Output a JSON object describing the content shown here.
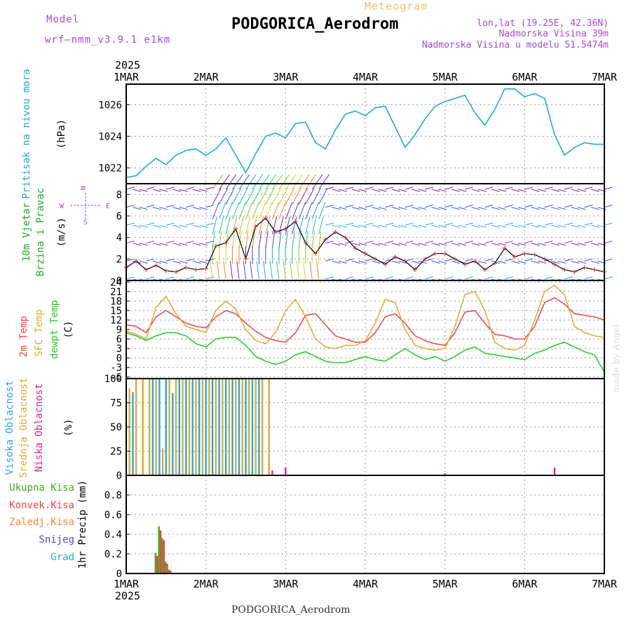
{
  "header": {
    "model_label": "Model",
    "model_version": "wrf–nmm_v3.9.1  e1km",
    "meteogram_label": "Meteogram",
    "station_title": "PODGORICA_Aerodrom",
    "lonlat": "lon,lat (19.25E, 42.36N)",
    "elevation": "Nadmorska Visina 39m",
    "model_elevation": "Nadmorska Visina u modelu 51.5474m"
  },
  "footer": {
    "station": "PODGORICA_Aerodrom",
    "credit": "made by Angel"
  },
  "x_axis": {
    "year": "2025",
    "labels": [
      "1MAR",
      "2MAR",
      "3MAR",
      "4MAR",
      "5MAR",
      "6MAR",
      "7MAR"
    ]
  },
  "colors": {
    "pressure": "#22aadd",
    "temp2m": "#ee4444",
    "sfc_temp": "#ddaa33",
    "dewpt": "#22cc22",
    "high_cloud": "#22aadd",
    "mid_cloud": "#ddaa33",
    "low_cloud": "#dd2288",
    "precip_total": "#44aa22",
    "precip_conv": "#ee4444",
    "grid": "#999999"
  },
  "panels": {
    "pressure": {
      "ylabel_main": "Pritisak na nivou mora",
      "unit": "(hPa)"
    },
    "wind": {
      "ylabel_main": "10m Vjetar",
      "ylabel_sub": "Brzina i Pravac",
      "unit": "(m/s)",
      "compass_n": "N",
      "compass_e": "E",
      "compass_w": "W",
      "compass_s": "S"
    },
    "temp": {
      "label_2m": "2m Temp",
      "label_sfc": "SFC Temp",
      "label_dew": "dewpt Temp",
      "unit": "(C)"
    },
    "cloud": {
      "label_high": "Visoka Oblacnost",
      "label_mid": "Srednja Oblacnost",
      "label_low": "Niska Oblacnost",
      "unit": "(%)"
    },
    "precip": {
      "label_total": "Ukupna Kisa",
      "label_conv": "Konvek.Kisa",
      "label_frz": "Zaledj.Kisa",
      "label_snow": "Snijeg",
      "label_grad": "Grad",
      "ylabel": "1hr Precip (mm)"
    }
  },
  "chart_data": [
    {
      "type": "line",
      "panel": "pressure",
      "ylabel": "(hPa)",
      "x_unit": "hours since 1MAR 00",
      "ylim": [
        1021,
        1027.3
      ],
      "yticks": [
        1022,
        1024,
        1026
      ],
      "series": [
        {
          "name": "Pritisak na nivou mora",
          "x": [
            0,
            3,
            6,
            9,
            12,
            15,
            18,
            21,
            24,
            27,
            30,
            33,
            36,
            39,
            42,
            45,
            48,
            51,
            54,
            57,
            60,
            63,
            66,
            69,
            72,
            75,
            78,
            81,
            84,
            87,
            90,
            93,
            96,
            99,
            102,
            105,
            108,
            111,
            114,
            117,
            120,
            123,
            126,
            129,
            132,
            135,
            138,
            141,
            144
          ],
          "values": [
            1021.4,
            1021.5,
            1022.1,
            1022.6,
            1022.2,
            1022.8,
            1023.1,
            1023.2,
            1022.8,
            1023.2,
            1023.9,
            1022.8,
            1021.7,
            1022.9,
            1024.0,
            1024.2,
            1023.9,
            1024.8,
            1024.9,
            1023.6,
            1023.2,
            1024.4,
            1025.4,
            1025.6,
            1025.3,
            1025.8,
            1025.9,
            1024.6,
            1023.3,
            1024.1,
            1025.1,
            1025.9,
            1026.2,
            1026.4,
            1026.6,
            1025.5,
            1024.7,
            1025.7,
            1027.0,
            1027.0,
            1026.5,
            1026.7,
            1026.4,
            1024.1,
            1022.8,
            1023.3,
            1023.6,
            1023.5,
            1023.5
          ]
        }
      ]
    },
    {
      "type": "line",
      "panel": "wind",
      "ylabel": "(m/s)",
      "x_unit": "hours since 1MAR 00",
      "ylim": [
        0,
        9
      ],
      "yticks": [
        0,
        2,
        4,
        6,
        8
      ],
      "series": [
        {
          "name": "10m Vjetar",
          "x": [
            0,
            3,
            6,
            9,
            12,
            15,
            18,
            21,
            24,
            27,
            30,
            33,
            36,
            39,
            42,
            45,
            48,
            51,
            54,
            57,
            60,
            63,
            66,
            69,
            72,
            75,
            78,
            81,
            84,
            87,
            90,
            93,
            96,
            99,
            102,
            105,
            108,
            111,
            114,
            117,
            120,
            123,
            126,
            129,
            132,
            135,
            138,
            141,
            144
          ],
          "values": [
            1.2,
            1.8,
            1.0,
            1.4,
            0.9,
            0.8,
            1.2,
            1.0,
            1.1,
            3.2,
            3.5,
            4.8,
            2.0,
            5.0,
            5.8,
            4.5,
            4.8,
            5.5,
            3.5,
            2.5,
            3.8,
            4.5,
            4.0,
            3.0,
            2.5,
            2.0,
            1.5,
            2.2,
            1.8,
            1.0,
            2.0,
            2.5,
            2.5,
            2.0,
            1.5,
            1.8,
            1.0,
            1.6,
            3.0,
            2.2,
            2.5,
            2.4,
            2.0,
            1.5,
            1.0,
            0.8,
            1.2,
            1.0,
            0.8
          ]
        }
      ]
    },
    {
      "type": "line",
      "panel": "temperature",
      "ylabel": "(C)",
      "x_unit": "hours since 1MAR 00",
      "ylim": [
        -6.5,
        24.5
      ],
      "yticks": [
        -6,
        -3,
        0,
        3,
        6,
        9,
        12,
        15,
        18,
        21,
        24
      ],
      "x": [
        0,
        3,
        6,
        9,
        12,
        15,
        18,
        21,
        24,
        27,
        30,
        33,
        36,
        39,
        42,
        45,
        48,
        51,
        54,
        57,
        60,
        63,
        66,
        69,
        72,
        75,
        78,
        81,
        84,
        87,
        90,
        93,
        96,
        99,
        102,
        105,
        108,
        111,
        114,
        117,
        120,
        123,
        126,
        129,
        132,
        135,
        138,
        141,
        144
      ],
      "series": [
        {
          "name": "2m Temp",
          "values": [
            10.5,
            10.0,
            8.0,
            13.0,
            15.0,
            13.0,
            11.0,
            10.0,
            9.5,
            13.0,
            15.0,
            14.0,
            11.0,
            8.5,
            6.5,
            5.5,
            5.0,
            8.0,
            13.5,
            14.0,
            10.5,
            7.0,
            6.0,
            5.0,
            5.0,
            8.0,
            13.0,
            14.0,
            11.0,
            7.0,
            5.5,
            4.5,
            4.0,
            8.0,
            14.5,
            15.0,
            11.0,
            7.5,
            7.0,
            6.0,
            6.0,
            10.0,
            17.5,
            19.0,
            17.0,
            14.0,
            13.5,
            13.0,
            12.0
          ]
        },
        {
          "name": "SFC Temp",
          "values": [
            8.5,
            7.5,
            6.0,
            16.0,
            19.5,
            14.0,
            10.0,
            9.0,
            8.0,
            15.0,
            18.0,
            15.5,
            9.0,
            5.5,
            4.5,
            8.0,
            15.0,
            18.5,
            13.0,
            6.0,
            3.5,
            3.0,
            4.0,
            4.0,
            5.5,
            11.0,
            18.5,
            17.5,
            9.0,
            4.0,
            3.0,
            2.5,
            3.0,
            10.0,
            20.0,
            21.0,
            15.0,
            5.0,
            3.0,
            2.5,
            4.0,
            12.0,
            21.0,
            23.0,
            20.0,
            10.0,
            8.0,
            7.0,
            6.5
          ]
        },
        {
          "name": "dewpt Temp",
          "values": [
            8.0,
            7.0,
            5.5,
            7.0,
            8.0,
            8.0,
            7.0,
            4.5,
            3.5,
            6.0,
            6.5,
            6.5,
            4.0,
            0.5,
            -1.0,
            -2.0,
            -1.0,
            1.0,
            2.0,
            0.5,
            -1.0,
            -1.5,
            -1.5,
            -0.5,
            0.5,
            -0.5,
            -1.0,
            1.0,
            3.0,
            1.0,
            -0.5,
            0.5,
            -1.0,
            0.5,
            2.5,
            3.5,
            1.5,
            1.0,
            0.5,
            0.0,
            -0.5,
            1.5,
            2.5,
            4.0,
            5.0,
            3.5,
            2.0,
            1.0,
            -4.5
          ]
        }
      ]
    },
    {
      "type": "bar",
      "panel": "cloud",
      "ylabel": "(%)",
      "x_unit": "hours since 1MAR 00",
      "ylim": [
        0,
        100
      ],
      "yticks": [
        0,
        25,
        50,
        75,
        100
      ],
      "series": [
        {
          "name": "Visoka Oblacnost",
          "x": [
            2,
            8,
            10,
            12,
            14,
            16,
            18,
            20,
            22,
            24,
            26,
            28,
            30,
            32,
            34,
            36,
            38,
            40
          ],
          "values": [
            86,
            100,
            100,
            100,
            85,
            100,
            100,
            100,
            100,
            100,
            100,
            100,
            100,
            100,
            100,
            100,
            100,
            100
          ]
        },
        {
          "name": "Srednja Oblacnost",
          "x": [
            1,
            3,
            5,
            7,
            9,
            11,
            13,
            15,
            17,
            19,
            21,
            23,
            25,
            27,
            29,
            31,
            33,
            35,
            37,
            39,
            41,
            43
          ],
          "values": [
            90,
            100,
            100,
            100,
            100,
            28,
            100,
            100,
            100,
            100,
            100,
            100,
            100,
            100,
            100,
            100,
            100,
            100,
            100,
            100,
            100,
            100
          ]
        },
        {
          "name": "Niska Oblacnost",
          "x": [
            44,
            48,
            96,
            129
          ],
          "values": [
            5,
            8,
            2,
            8
          ]
        }
      ]
    },
    {
      "type": "bar",
      "panel": "precip",
      "ylabel": "1hr Precip (mm)",
      "x_unit": "hours since 1MAR 00",
      "ylim": [
        0,
        1.0
      ],
      "yticks": [
        0,
        0.2,
        0.4,
        0.6,
        0.8
      ],
      "series": [
        {
          "name": "Ukupna Kisa",
          "x": [
            9,
            10,
            11,
            12,
            13
          ],
          "values": [
            0.21,
            0.48,
            0.36,
            0.12,
            0.04
          ]
        },
        {
          "name": "Konvek.Kisa",
          "x": [
            9,
            10,
            11,
            12,
            13
          ],
          "values": [
            0.18,
            0.44,
            0.34,
            0.1,
            0.03
          ]
        }
      ]
    }
  ]
}
